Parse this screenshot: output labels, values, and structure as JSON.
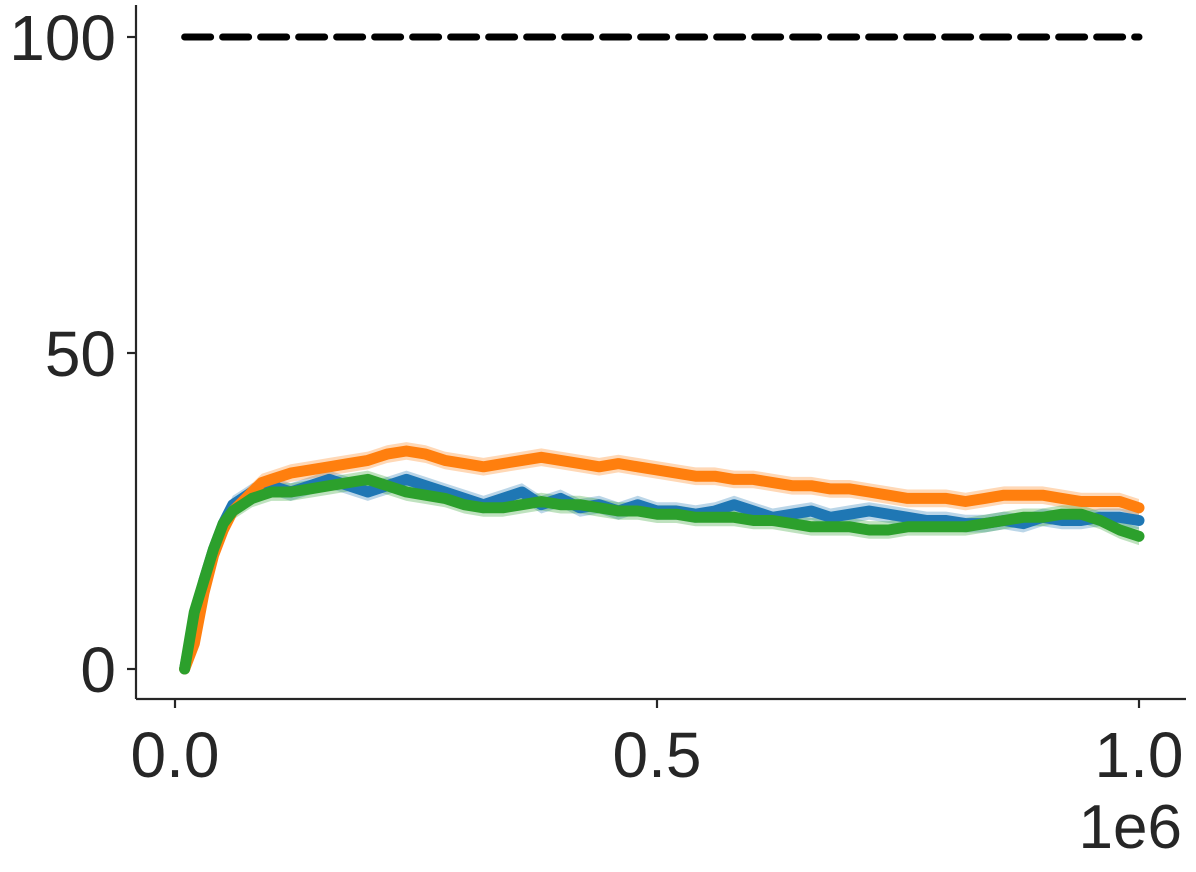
{
  "chart_data": {
    "type": "line",
    "title": "",
    "xlabel": "",
    "ylabel": "",
    "x_scale_label": "1e6",
    "xlim": [
      -0.04,
      1.05
    ],
    "ylim": [
      -5,
      105
    ],
    "xticks": [
      0.0,
      0.5,
      1.0
    ],
    "xtick_labels": [
      "0.0",
      "0.5",
      "1.0"
    ],
    "yticks": [
      0,
      50,
      100
    ],
    "ytick_labels": [
      "0",
      "50",
      "100"
    ],
    "grid": false,
    "legend": "none",
    "reference_line": {
      "y": 100,
      "x_range": [
        0.01,
        1.0
      ],
      "style": "dashed",
      "color": "#000000"
    },
    "x": [
      0.01,
      0.02,
      0.03,
      0.04,
      0.05,
      0.06,
      0.07,
      0.08,
      0.09,
      0.1,
      0.12,
      0.14,
      0.16,
      0.18,
      0.2,
      0.22,
      0.24,
      0.26,
      0.28,
      0.3,
      0.32,
      0.34,
      0.36,
      0.38,
      0.4,
      0.42,
      0.44,
      0.46,
      0.48,
      0.5,
      0.52,
      0.54,
      0.56,
      0.58,
      0.6,
      0.62,
      0.64,
      0.66,
      0.68,
      0.7,
      0.72,
      0.74,
      0.76,
      0.78,
      0.8,
      0.82,
      0.84,
      0.86,
      0.88,
      0.9,
      0.92,
      0.94,
      0.96,
      0.98,
      1.0
    ],
    "series": [
      {
        "color": "#1f77b4",
        "values": [
          0,
          8,
          14,
          19,
          23,
          26,
          27,
          28,
          28.5,
          29,
          28,
          29,
          30,
          29,
          28,
          29,
          30,
          29,
          28,
          27,
          26,
          27,
          28,
          26,
          27,
          25.5,
          26,
          25,
          26,
          25,
          25,
          24.5,
          25,
          26,
          25,
          24,
          24.5,
          25,
          24,
          24.5,
          25,
          24.5,
          24,
          23.5,
          23.5,
          23,
          23,
          23.5,
          23,
          24,
          23.5,
          23.5,
          24,
          24,
          23.5
        ]
      },
      {
        "color": "#ff7f0e",
        "values": [
          0,
          4,
          12,
          18,
          22,
          25,
          26.5,
          28,
          29.5,
          30,
          31,
          31.5,
          32,
          32.5,
          33,
          34,
          34.5,
          34,
          33,
          32.5,
          32,
          32.5,
          33,
          33.5,
          33,
          32.5,
          32,
          32.5,
          32,
          31.5,
          31,
          30.5,
          30.5,
          30,
          30,
          29.5,
          29,
          29,
          28.5,
          28.5,
          28,
          27.5,
          27,
          27,
          27,
          26.5,
          27,
          27.5,
          27.5,
          27.5,
          27,
          26.5,
          26.5,
          26.5,
          25.5
        ]
      },
      {
        "color": "#2ca02c",
        "values": [
          0,
          9,
          14,
          19,
          23,
          25,
          26,
          27,
          27.5,
          28,
          28,
          28.5,
          29,
          29.5,
          30,
          29,
          28,
          27.5,
          27,
          26,
          25.5,
          25.5,
          26,
          26.5,
          26,
          26,
          25.5,
          25,
          25,
          24.5,
          24.5,
          24,
          24,
          24,
          23.5,
          23.5,
          23,
          22.5,
          22.5,
          22.5,
          22,
          22,
          22.5,
          22.5,
          22.5,
          22.5,
          23,
          23.5,
          24,
          24,
          24.5,
          24.5,
          23.5,
          22,
          21
        ]
      }
    ]
  }
}
